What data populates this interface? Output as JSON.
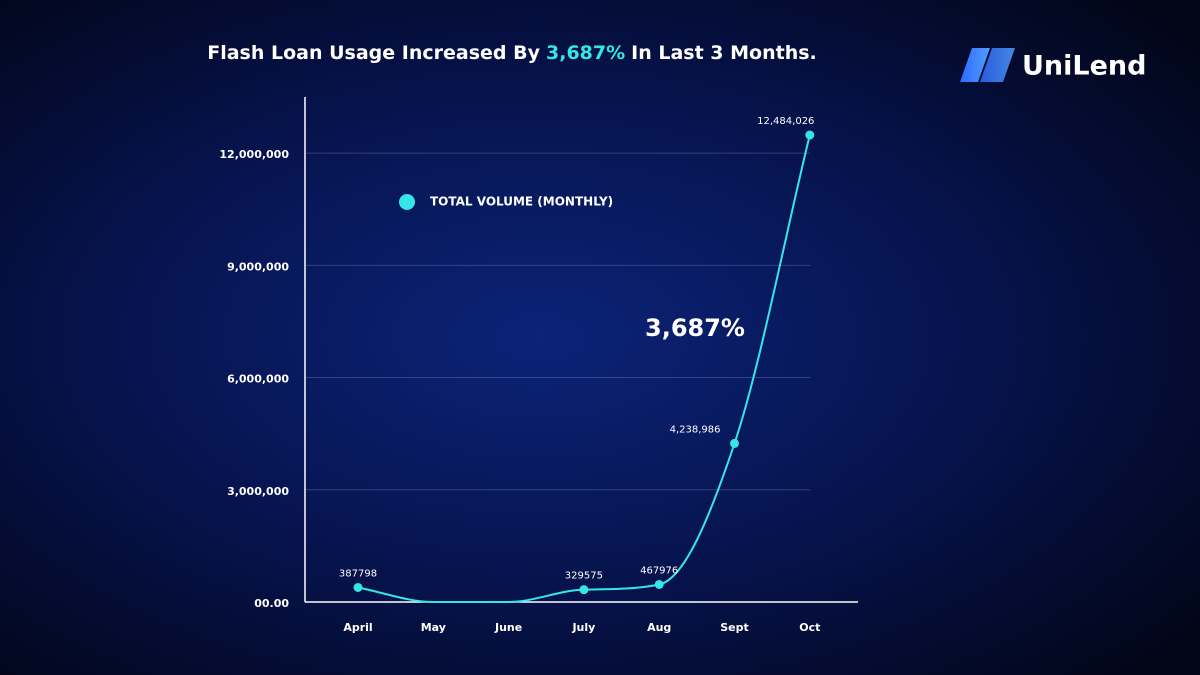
{
  "brand": "UniLend",
  "chart_data": {
    "type": "line",
    "title": [
      "Flash Loan Usage Increased By",
      "3,687%",
      "In Last 3 Months."
    ],
    "annotation": "3,687%",
    "categories": [
      "April",
      "May",
      "June",
      "July",
      "Aug",
      "Sept",
      "Oct"
    ],
    "series": [
      {
        "name": "TOTAL VOLUME (MONTHLY)",
        "color": "#35e6e6",
        "values": [
          387798,
          0,
          0,
          329575,
          467976,
          4238986,
          12484026
        ],
        "value_labels": [
          "387798",
          null,
          null,
          "329575",
          "467976",
          "4,238,986",
          "12,484,026"
        ]
      }
    ],
    "ylim": [
      0,
      13500000
    ],
    "yticks": [
      {
        "value": 0,
        "label": "00.00"
      },
      {
        "value": 3000000,
        "label": "3,000,000"
      },
      {
        "value": 6000000,
        "label": "6,000,000"
      },
      {
        "value": 9000000,
        "label": "9,000,000"
      },
      {
        "value": 12000000,
        "label": "12,000,000"
      }
    ],
    "grid": true,
    "legend": "upper left"
  }
}
